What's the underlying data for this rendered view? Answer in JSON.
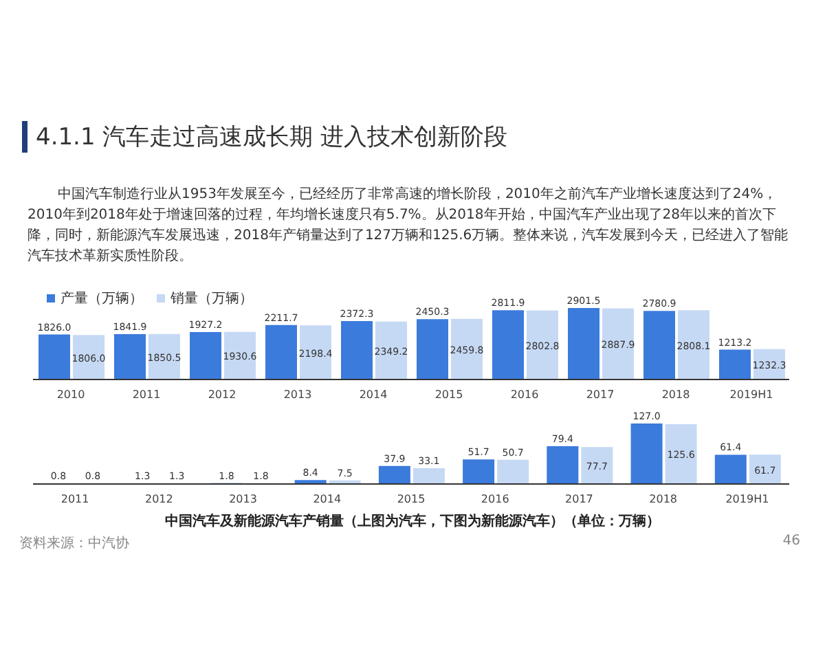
{
  "chart_data": [
    {
      "type": "bar",
      "title": "4.1.1 汽车走过高速成长期 进入技术创新阶段",
      "subtitle": "中国汽车制造行业从1953年发展至今，已经经历了非常高速的增长阶段，2010年之前汽车产业增长速度达到了24%，2010年到2018年处于增速回落的过程，年均增长速度只有5.7%。从2018年开始，中国汽车产业出现了28年以来的首次下降，同时，新能源汽车发展迅速，2018年产销量达到了127万辆和125.6万辆。整体来说，汽车发展到今天，已经进入了智能汽车技术革新实质性阶段。",
      "categories": [
        "2010",
        "2011",
        "2012",
        "2013",
        "2014",
        "2015",
        "2016",
        "2017",
        "2018",
        "2019H1"
      ],
      "series": [
        {
          "name": "产量（万辆）",
          "color": "#3b7bdb",
          "values": [
            1826.0,
            1841.9,
            1927.2,
            2211.7,
            2372.3,
            2450.3,
            2811.9,
            2901.5,
            2780.9,
            1213.2
          ],
          "value_labels": [
            "1826.0",
            "1841.9",
            "1927.2",
            "2211.7",
            "2372.3",
            "2450.3",
            "2811.9",
            "2901.5",
            "2780.9",
            "1213.2"
          ]
        },
        {
          "name": "销量（万辆）",
          "color": "#c6d9f4",
          "values": [
            1806.0,
            1850.5,
            1930.6,
            2198.4,
            2349.2,
            2459.8,
            2802.8,
            2887.9,
            2808.1,
            1232.3
          ],
          "value_labels": [
            "1806.0",
            "1850.5",
            "1930.6",
            "2198.4",
            "2349.2",
            "2459.8",
            "2802.8",
            "2887.9",
            "2808.1",
            "1232.3"
          ]
        }
      ],
      "legend": "top left",
      "tick_labels": "x",
      "grid": false
    },
    {
      "type": "bar",
      "categories": [
        "2011",
        "2012",
        "2013",
        "2014",
        "2015",
        "2016",
        "2017",
        "2018",
        "2019H1"
      ],
      "series": [
        {
          "color": "#3b7bdb",
          "values": [
            0.8,
            1.3,
            1.8,
            8.4,
            37.9,
            51.7,
            79.4,
            127.0,
            61.4
          ],
          "value_labels": [
            "0.8",
            "1.3",
            "1.8",
            "8.4",
            "37.9",
            "51.7",
            "79.4",
            "127.0",
            "61.4"
          ]
        },
        {
          "color": "#c6d9f4",
          "values": [
            0.8,
            1.3,
            1.8,
            7.5,
            33.1,
            50.7,
            77.7,
            125.6,
            61.7
          ],
          "value_labels": [
            "0.8",
            "1.3",
            "1.8",
            "7.5",
            "33.1",
            "50.7",
            "77.7",
            "125.6",
            "61.7"
          ]
        }
      ],
      "legend": false,
      "tick_labels": "x",
      "grid": false,
      "annotations": [
        "中国汽车及新能源汽车产销量（上图为汽车，下图为新能源汽车）（单位：万辆）",
        "资料来源：中汽协",
        "46"
      ]
    }
  ]
}
